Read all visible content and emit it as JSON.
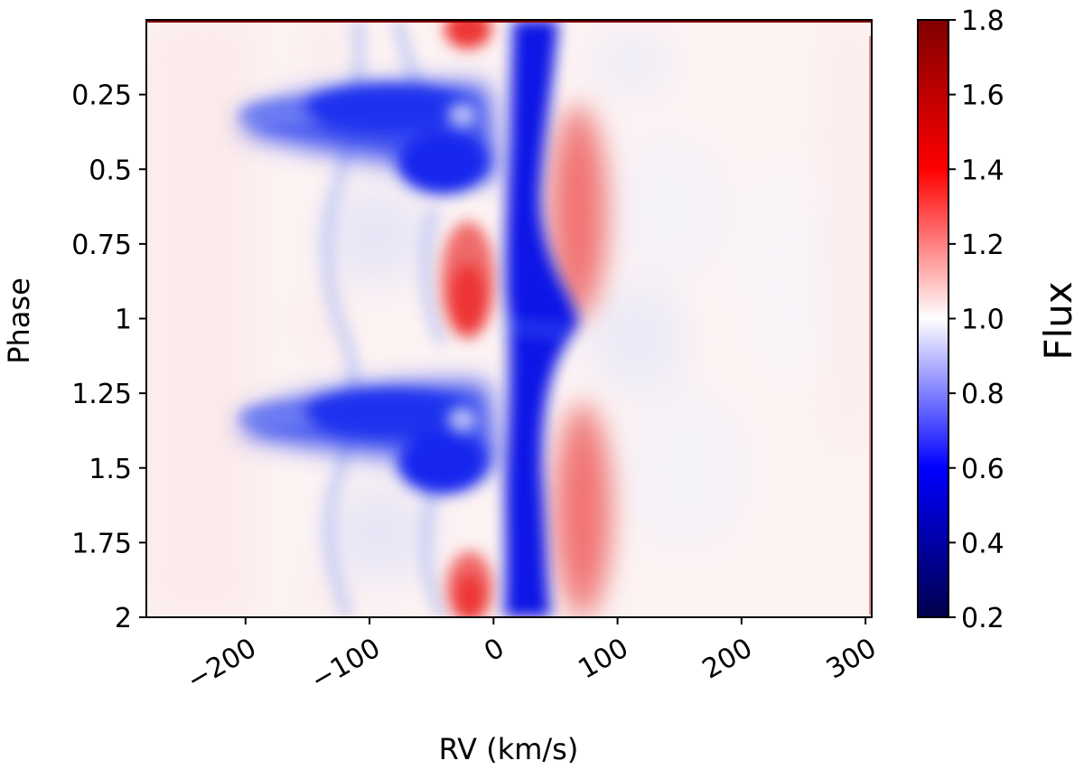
{
  "chart_data": {
    "type": "heatmap",
    "title": "",
    "xlabel": "RV (km/s)",
    "ylabel": "Phase",
    "xlim": [
      -280,
      305
    ],
    "ylim": [
      2.0,
      0.0
    ],
    "x_ticks": [
      -200,
      -100,
      0,
      100,
      200,
      300
    ],
    "x_tick_labels": [
      "−200",
      "−100",
      "0",
      "100",
      "200",
      "300"
    ],
    "y_ticks": [
      0.25,
      0.5,
      0.75,
      1.0,
      1.25,
      1.5,
      1.75,
      2.0
    ],
    "y_tick_labels": [
      "0.25",
      "0.5",
      "0.75",
      "1",
      "1.25",
      "1.5",
      "1.75",
      "2"
    ],
    "colorbar": {
      "label": "Flux",
      "range": [
        0.2,
        1.8
      ],
      "ticks": [
        0.2,
        0.4,
        0.6,
        0.8,
        1.0,
        1.2,
        1.4,
        1.6,
        1.8
      ],
      "tick_labels": [
        "0.2",
        "0.4",
        "0.6",
        "0.8",
        "1.0",
        "1.2",
        "1.4",
        "1.6",
        "1.8"
      ],
      "colormap": "seismic",
      "stops": [
        "#00004c",
        "#0000ff",
        "#ffffff",
        "#ff0000",
        "#800000"
      ]
    },
    "features": [
      {
        "name": "central absorption core",
        "rv_range": [
          0,
          30
        ],
        "phase_range": [
          0.0,
          2.0
        ],
        "flux": 0.6
      },
      {
        "name": "blue absorption tail",
        "rv_range": [
          -210,
          0
        ],
        "phase": 0.3,
        "flux": 0.75
      },
      {
        "name": "blue absorption tail",
        "rv_range": [
          -210,
          0
        ],
        "phase": 1.3,
        "flux": 0.75
      },
      {
        "name": "red emission lobe",
        "rv_center": 65,
        "phase": 0.65,
        "flux": 1.2
      },
      {
        "name": "red emission lobe",
        "rv_center": 65,
        "phase": 1.6,
        "flux": 1.2
      },
      {
        "name": "blue-side emission spot",
        "rv_center": -15,
        "phase": 0.95,
        "flux": 1.3
      },
      {
        "name": "blue-side emission spot",
        "rv_center": -15,
        "phase": 1.95,
        "flux": 1.3
      }
    ]
  }
}
